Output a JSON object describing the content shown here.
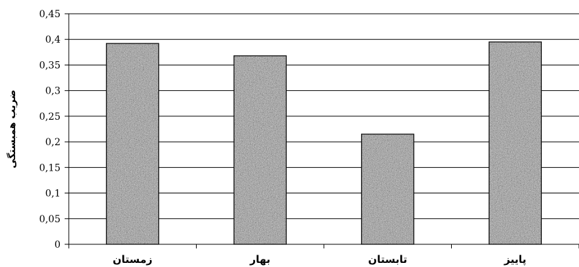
{
  "chart_data": {
    "type": "bar",
    "title": "",
    "xlabel": "",
    "ylabel": "ضریب همبستگی",
    "categories": [
      "زمستان",
      "بهار",
      "تابستان",
      "پاییز"
    ],
    "values": [
      0.392,
      0.368,
      0.215,
      0.395
    ],
    "ylim": [
      0,
      0.45
    ],
    "yticks": [
      0,
      0.05,
      0.1,
      0.15,
      0.2,
      0.25,
      0.3,
      0.35,
      0.4,
      0.45
    ],
    "ytick_labels": [
      "0",
      "0,05",
      "0,1",
      "0,15",
      "0,2",
      "0,25",
      "0,3",
      "0,35",
      "0,4",
      "0,45"
    ],
    "grid": true,
    "legend": "none",
    "bar_fill": "#9a9a9a",
    "bar_texture": "speckled gray",
    "gridline_color": "#000000"
  }
}
